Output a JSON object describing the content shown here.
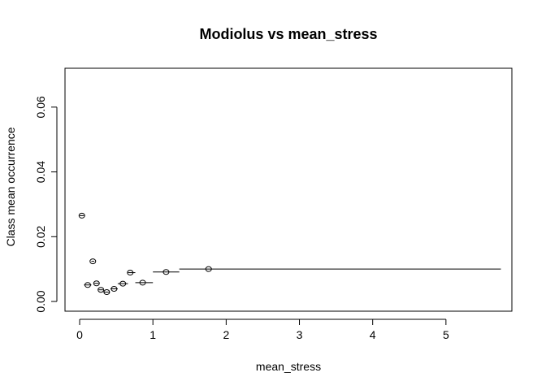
{
  "chart_data": {
    "type": "scatter",
    "title": "Modiolus vs mean_stress",
    "xlabel": "mean_stress",
    "ylabel": "Class mean occurrence",
    "xlim": [
      -0.2,
      5.9
    ],
    "ylim": [
      -0.003,
      0.072
    ],
    "x_ticks": [
      0,
      1,
      2,
      3,
      4,
      5
    ],
    "x_tick_labels": [
      "0",
      "1",
      "2",
      "3",
      "4",
      "5"
    ],
    "y_ticks": [
      0.0,
      0.02,
      0.04,
      0.06
    ],
    "y_tick_labels": [
      "0.00",
      "0.02",
      "0.04",
      "0.06"
    ],
    "grid": false,
    "points": [
      {
        "x": 0.03,
        "y": 0.0265,
        "x_from": 0.0,
        "x_to": 0.06
      },
      {
        "x": 0.11,
        "y": 0.0051,
        "x_from": 0.06,
        "x_to": 0.16
      },
      {
        "x": 0.18,
        "y": 0.0124,
        "x_from": 0.16,
        "x_to": 0.2
      },
      {
        "x": 0.23,
        "y": 0.0056,
        "x_from": 0.2,
        "x_to": 0.26
      },
      {
        "x": 0.29,
        "y": 0.0036,
        "x_from": 0.26,
        "x_to": 0.32
      },
      {
        "x": 0.37,
        "y": 0.0029,
        "x_from": 0.33,
        "x_to": 0.41
      },
      {
        "x": 0.47,
        "y": 0.0039,
        "x_from": 0.42,
        "x_to": 0.52
      },
      {
        "x": 0.59,
        "y": 0.0055,
        "x_from": 0.52,
        "x_to": 0.66
      },
      {
        "x": 0.69,
        "y": 0.0089,
        "x_from": 0.66,
        "x_to": 0.76
      },
      {
        "x": 0.86,
        "y": 0.0058,
        "x_from": 0.76,
        "x_to": 1.0
      },
      {
        "x": 1.18,
        "y": 0.0091,
        "x_from": 1.0,
        "x_to": 1.36
      },
      {
        "x": 1.76,
        "y": 0.01,
        "x_from": 1.36,
        "x_to": 5.75
      }
    ]
  }
}
